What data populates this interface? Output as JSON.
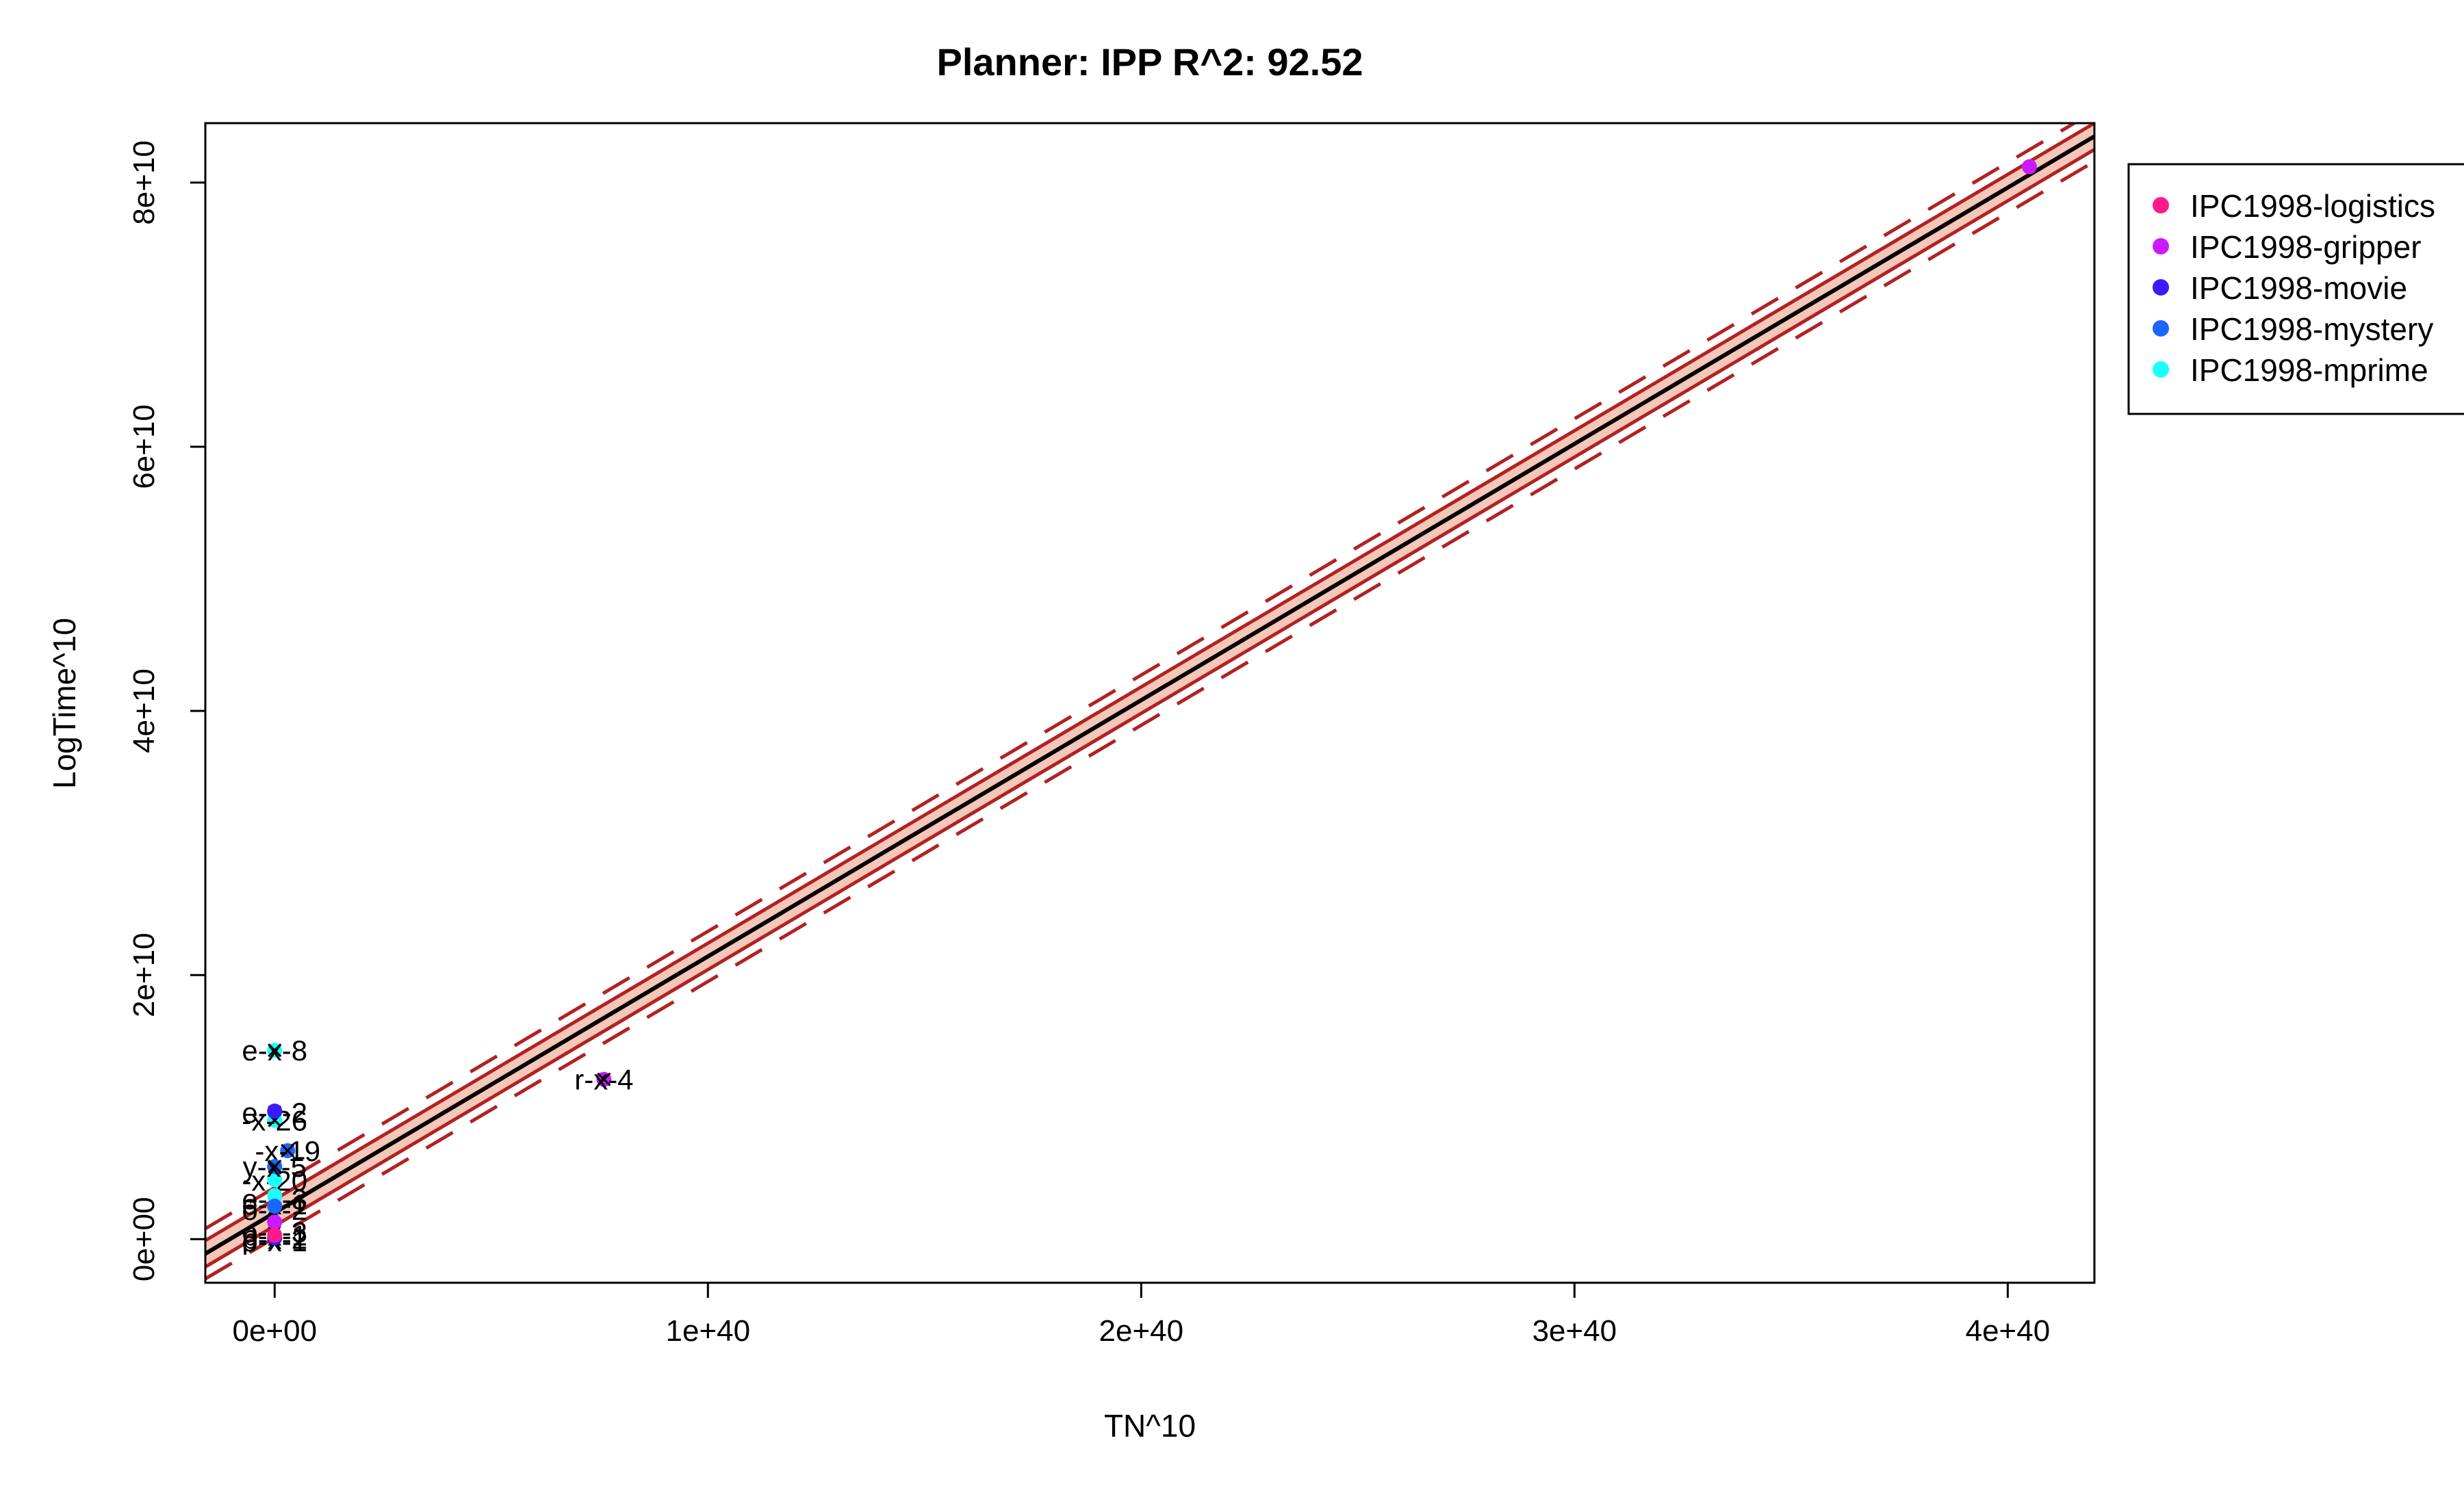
{
  "chart_data": {
    "type": "scatter",
    "title": "Planner: IPP R^2: 92.52",
    "xlabel": "TN^10",
    "ylabel": "LogTime^10",
    "xlim": [
      -1.6e+39,
      4.2e+40
    ],
    "ylim": [
      -3300000000.0,
      84500000000.0
    ],
    "x_ticks": [
      0,
      1e+40,
      2e+40,
      3e+40,
      4e+40
    ],
    "x_tick_labels": [
      "0e+00",
      "1e+40",
      "2e+40",
      "3e+40",
      "4e+40"
    ],
    "y_ticks": [
      0,
      20000000000.0,
      40000000000.0,
      60000000000.0,
      80000000000.0
    ],
    "y_tick_labels": [
      "0e+00",
      "2e+10",
      "4e+10",
      "6e+10",
      "8e+10"
    ],
    "grid": false,
    "legend": {
      "position": "right-outside",
      "entries": [
        {
          "name": "IPC1998-logistics",
          "color": "#ff1a8c"
        },
        {
          "name": "IPC1998-gripper",
          "color": "#cc1aff"
        },
        {
          "name": "IPC1998-movie",
          "color": "#3d1aff"
        },
        {
          "name": "IPC1998-mystery",
          "color": "#1a66ff"
        },
        {
          "name": "IPC1998-mprime",
          "color": "#1affff"
        }
      ]
    },
    "regression": {
      "fit_start": [
        -1.6e+39,
        -1100000000.0
      ],
      "fit_end": [
        4.2e+40,
        83500000000.0
      ],
      "band_offset": 1000000000.0,
      "fit_color": "#000000",
      "band_fill_color": "#f4c7b8",
      "band_line_color": "#b22222"
    },
    "series": [
      {
        "name": "IPC1998-gripper",
        "color": "#cc1aff",
        "points": [
          {
            "x": 4.05e+40,
            "y": 81200000000.0,
            "label": ""
          },
          {
            "x": 7.6e+39,
            "y": 12100000000.0,
            "label": "r-x-4"
          },
          {
            "x": 0,
            "y": 1300000000.0,
            "label": ""
          }
        ]
      },
      {
        "name": "IPC1998-mprime",
        "color": "#1affff",
        "points": [
          {
            "x": 0,
            "y": 14300000000.0,
            "label": "e-x-8"
          },
          {
            "x": 0,
            "y": 9600000000.0,
            "label": "e-x-2"
          },
          {
            "x": 0,
            "y": 9000000000.0,
            "label": "-x-26"
          },
          {
            "x": 0,
            "y": 4500000000.0,
            "label": ""
          },
          {
            "x": 0,
            "y": 3300000000.0,
            "label": ""
          }
        ]
      },
      {
        "name": "IPC1998-mystery",
        "color": "#1a66ff",
        "points": [
          {
            "x": 3e+38,
            "y": 6700000000.0,
            "label": "-x-19"
          },
          {
            "x": 0,
            "y": 5500000000.0,
            "label": "y-x-5"
          },
          {
            "x": 0,
            "y": 2500000000.0,
            "label": ""
          }
        ]
      },
      {
        "name": "IPC1998-movie",
        "color": "#3d1aff",
        "points": [
          {
            "x": 0,
            "y": 9700000000.0,
            "label": ""
          },
          {
            "x": 0,
            "y": 100000000.0,
            "label": ""
          }
        ]
      },
      {
        "name": "IPC1998-logistics",
        "color": "#ff1a8c",
        "points": [
          {
            "x": 0,
            "y": 300000000.0,
            "label": ""
          }
        ]
      }
    ],
    "cluster_labels": [
      {
        "x": 0,
        "y": 3000000000.0,
        "label": "e-x-3"
      },
      {
        "x": 0,
        "y": 2600000000.0,
        "label": "e-x-1"
      },
      {
        "x": 0,
        "y": 2200000000.0,
        "label": "o-x-2"
      },
      {
        "x": 0,
        "y": 4400000000.0,
        "label": "-x-20"
      },
      {
        "x": 0,
        "y": 520000000.0,
        "label": "o-x-3"
      },
      {
        "x": 0,
        "y": 250000000.0,
        "label": "p-x-1"
      },
      {
        "x": 0,
        "y": 0,
        "label": "p-x-2"
      },
      {
        "x": 0,
        "y": -200000000.0,
        "label": "o-x-1"
      }
    ]
  }
}
